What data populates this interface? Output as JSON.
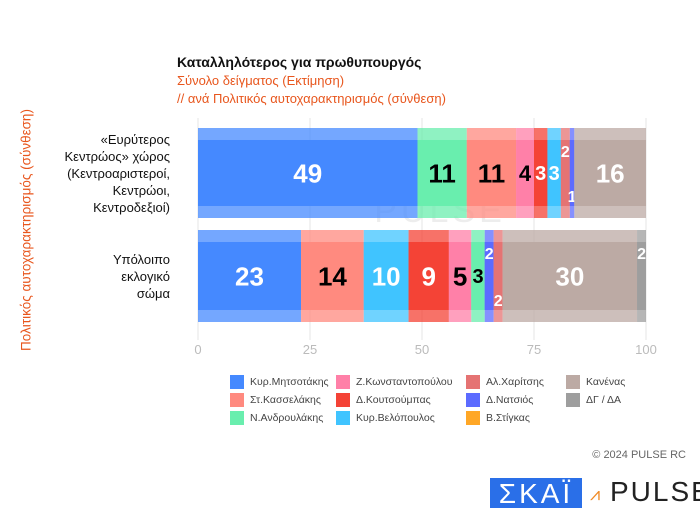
{
  "chart_data": {
    "type": "bar",
    "stacked": true,
    "orientation": "horizontal",
    "title": "Καταλληλότερος για πρωθυπουργός",
    "subtitle": "Σύνολο δείγματος   (Εκτίμηση)",
    "subtitle2": "// ανά Πολιτικός αυτοχαρακτηρισμός (σύνθεση)",
    "ylabel": "Πολιτικός αυτοχαρακτηρισμός (σύνθεση)",
    "xlim": [
      0,
      100
    ],
    "xticks": [
      0,
      25,
      50,
      75,
      100
    ],
    "categories": [
      [
        "«Ευρύτερος",
        "Κεντρώος» χώρος",
        "(Κεντροαριστεροί,",
        "Κεντρώοι,",
        "Κεντροδεξιοί)"
      ],
      [
        "Υπόλοιπο",
        "εκλογικό",
        "σώμα"
      ]
    ],
    "series_info": [
      {
        "name": "Κυρ.Μητσοτάκης",
        "color": "#4589ff",
        "label": "#ffffff"
      },
      {
        "name": "Στ.Κασσελάκης",
        "color": "#ff8a7f",
        "label": "#000000"
      },
      {
        "name": "Ν.Ανδρουλάκης",
        "color": "#69eeae",
        "label": "#000000"
      },
      {
        "name": "Ζ.Κωνσταντοπούλου",
        "color": "#ff80a8",
        "label": "#000000"
      },
      {
        "name": "Δ.Κουτσούμπας",
        "color": "#f44336",
        "label": "#ffffff"
      },
      {
        "name": "Κυρ.Βελόπουλος",
        "color": "#40c4ff",
        "label": "#ffffff"
      },
      {
        "name": "Αλ.Χαρίτσης",
        "color": "#e57373",
        "label": "#ffffff"
      },
      {
        "name": "Δ.Νατσιός",
        "color": "#5c6bff",
        "label": "#ffffff"
      },
      {
        "name": "Β.Στίγκας",
        "color": "#ffa726",
        "label": "#ffffff"
      },
      {
        "name": "Κανένας",
        "color": "#bcaaa4",
        "label": "#ffffff"
      },
      {
        "name": "ΔΓ / ΔΑ",
        "color": "#9e9e9e",
        "label": "#ffffff"
      }
    ],
    "rows": [
      [
        {
          "s": 0,
          "v": 49
        },
        {
          "s": 2,
          "v": 11
        },
        {
          "s": 1,
          "v": 11
        },
        {
          "s": 3,
          "v": 4
        },
        {
          "s": 4,
          "v": 3
        },
        {
          "s": 5,
          "v": 3
        },
        {
          "s": 6,
          "v": 2
        },
        {
          "s": 7,
          "v": 1
        },
        {
          "s": 9,
          "v": 16
        }
      ],
      [
        {
          "s": 0,
          "v": 23
        },
        {
          "s": 1,
          "v": 14
        },
        {
          "s": 5,
          "v": 10
        },
        {
          "s": 4,
          "v": 9
        },
        {
          "s": 3,
          "v": 5
        },
        {
          "s": 2,
          "v": 3
        },
        {
          "s": 7,
          "v": 2
        },
        {
          "s": 6,
          "v": 2
        },
        {
          "s": 9,
          "v": 30
        },
        {
          "s": 10,
          "v": 2
        }
      ]
    ],
    "legend_order": [
      0,
      3,
      6,
      9,
      1,
      4,
      7,
      10,
      2,
      5,
      8
    ]
  },
  "watermark": "PULSE",
  "copyright": "© 2024 PULSE RC",
  "logos": {
    "skai": "ΣΚΑΪ",
    "pulse": "PULSE"
  }
}
